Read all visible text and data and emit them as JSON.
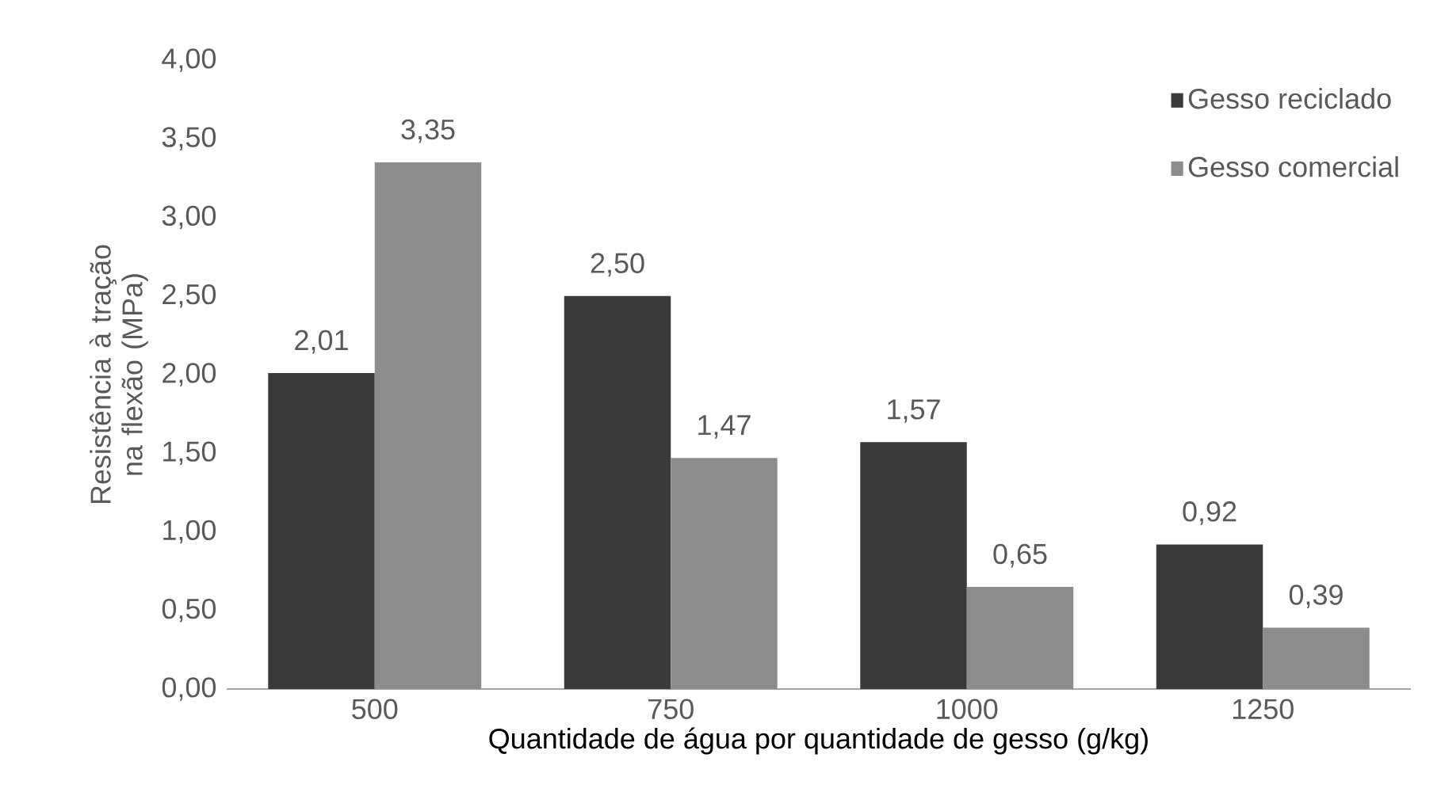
{
  "chart_data": {
    "type": "bar",
    "xlabel": "Quantidade de água por quantidade de gesso (g/kg)",
    "ylabel": "Resistência à tração na flexão (MPa)",
    "categories": [
      "500",
      "750",
      "1000",
      "1250"
    ],
    "series": [
      {
        "name": "Gesso reciclado",
        "color": "#3a3a3a",
        "values": [
          2.01,
          2.5,
          1.57,
          0.92
        ],
        "value_labels": [
          "2,01",
          "2,50",
          "1,57",
          "0,92"
        ]
      },
      {
        "name": "Gesso comercial",
        "color": "#8c8c8c",
        "values": [
          3.35,
          1.47,
          0.65,
          0.39
        ],
        "value_labels": [
          "3,35",
          "1,47",
          "0,65",
          "0,39"
        ]
      }
    ],
    "ylim": [
      0,
      4
    ],
    "yticks": [
      {
        "value": 0,
        "label": "0,00"
      },
      {
        "value": 0.5,
        "label": "0,50"
      },
      {
        "value": 1,
        "label": "1,00"
      },
      {
        "value": 1.5,
        "label": "1,50"
      },
      {
        "value": 2,
        "label": "2,00"
      },
      {
        "value": 2.5,
        "label": "2,50"
      },
      {
        "value": 3,
        "label": "3,00"
      },
      {
        "value": 3.5,
        "label": "3,50"
      },
      {
        "value": 4,
        "label": "4,00"
      }
    ],
    "grid": false,
    "legend": "top right"
  }
}
